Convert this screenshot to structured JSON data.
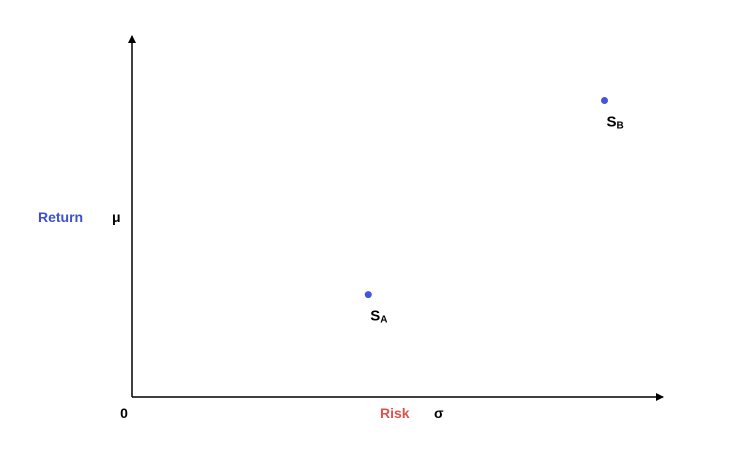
{
  "chart_data": {
    "type": "scatter",
    "title": "",
    "xlabel": "Risk",
    "xsymbol": "σ",
    "ylabel": "Return",
    "ysymbol": "μ",
    "origin_label": "0",
    "xlim": [
      0,
      1
    ],
    "ylim": [
      0,
      1
    ],
    "grid": false,
    "points": [
      {
        "name": "S",
        "subscript": "A",
        "x": 0.45,
        "y": 0.29
      },
      {
        "name": "S",
        "subscript": "B",
        "x": 0.9,
        "y": 0.84
      }
    ],
    "colors": {
      "points": "#4455dd",
      "xlabel": "#d9534f",
      "ylabel": "#3d4fd1",
      "axis": "#000000",
      "text": "#000000"
    }
  }
}
